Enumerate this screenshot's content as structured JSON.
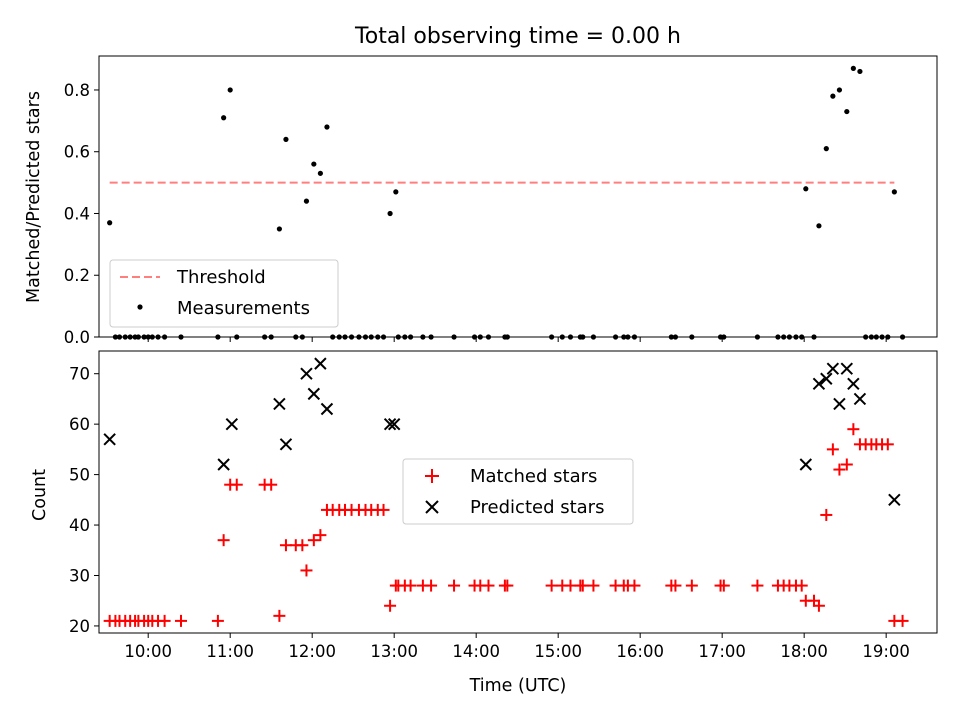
{
  "chart_data": [
    {
      "type": "scatter",
      "title": "Total observing time = 0.00 h",
      "ylabel": "Matched/Predicted stars",
      "xlabel": "",
      "xlim": [
        9.4,
        19.62
      ],
      "ylim": [
        0.0,
        0.91
      ],
      "yticks": [
        0.0,
        0.2,
        0.4,
        0.6,
        0.8
      ],
      "ytick_labels": [
        "0.0",
        "0.2",
        "0.4",
        "0.6",
        "0.8"
      ],
      "xticks": [
        10,
        11,
        12,
        13,
        14,
        15,
        16,
        17,
        18,
        19
      ],
      "grid": false,
      "legend_position": "lower-left",
      "threshold": {
        "name": "Threshold",
        "x_start": 9.53,
        "x_end": 19.1,
        "y": 0.5,
        "color": "#ff7f7f",
        "style": "dashed"
      },
      "series": [
        {
          "name": "Measurements",
          "color": "#000000",
          "marker": "dot",
          "x": [
            9.53,
            9.6,
            9.65,
            9.72,
            9.78,
            9.84,
            9.88,
            9.95,
            10.0,
            10.05,
            10.12,
            10.2,
            10.4,
            10.85,
            10.92,
            11.0,
            11.08,
            11.42,
            11.5,
            11.6,
            11.68,
            11.8,
            11.88,
            11.93,
            12.02,
            12.1,
            12.18,
            12.25,
            12.33,
            12.4,
            12.48,
            12.57,
            12.65,
            12.72,
            12.8,
            12.87,
            12.95,
            13.02,
            13.05,
            13.13,
            13.2,
            13.35,
            13.45,
            13.73,
            13.98,
            14.05,
            14.15,
            14.35,
            14.38,
            14.92,
            15.05,
            15.15,
            15.27,
            15.3,
            15.43,
            15.7,
            15.8,
            15.85,
            15.93,
            16.38,
            16.43,
            16.63,
            16.98,
            17.02,
            17.43,
            17.68,
            17.75,
            17.82,
            17.9,
            17.97,
            18.02,
            18.12,
            18.18,
            18.27,
            18.35,
            18.43,
            18.52,
            18.6,
            18.68,
            18.75,
            18.82,
            18.88,
            18.95,
            19.02,
            19.1,
            19.2
          ],
          "y": [
            0.37,
            0.0,
            0.0,
            0.0,
            0.0,
            0.0,
            0.0,
            0.0,
            0.0,
            0.0,
            0.0,
            0.0,
            0.0,
            0.0,
            0.71,
            0.8,
            0.0,
            0.0,
            0.0,
            0.35,
            0.64,
            0.0,
            0.0,
            0.44,
            0.56,
            0.53,
            0.68,
            0.0,
            0.0,
            0.0,
            0.0,
            0.0,
            0.0,
            0.0,
            0.0,
            0.0,
            0.4,
            0.47,
            0.0,
            0.0,
            0.0,
            0.0,
            0.0,
            0.0,
            0.0,
            0.0,
            0.0,
            0.0,
            0.0,
            0.0,
            0.0,
            0.0,
            0.0,
            0.0,
            0.0,
            0.0,
            0.0,
            0.0,
            0.0,
            0.0,
            0.0,
            0.0,
            0.0,
            0.0,
            0.0,
            0.0,
            0.0,
            0.0,
            0.0,
            0.0,
            0.48,
            0.0,
            0.36,
            0.61,
            0.78,
            0.8,
            0.73,
            0.87,
            0.86,
            0.0,
            0.0,
            0.0,
            0.0,
            0.0,
            0.47,
            0.0
          ]
        }
      ]
    },
    {
      "type": "scatter",
      "title": "",
      "ylabel": "Count",
      "xlabel": "Time (UTC)",
      "xlim": [
        9.4,
        19.62
      ],
      "ylim": [
        18.6,
        74.5
      ],
      "yticks": [
        20,
        30,
        40,
        50,
        60,
        70
      ],
      "ytick_labels": [
        "20",
        "30",
        "40",
        "50",
        "60",
        "70"
      ],
      "xticks": [
        10,
        11,
        12,
        13,
        14,
        15,
        16,
        17,
        18,
        19
      ],
      "xtick_labels": [
        "10:00",
        "11:00",
        "12:00",
        "13:00",
        "14:00",
        "15:00",
        "16:00",
        "17:00",
        "18:00",
        "19:00"
      ],
      "grid": false,
      "legend_position": "center",
      "series": [
        {
          "name": "Matched stars",
          "color": "#ff0000",
          "marker": "plus",
          "x": [
            9.53,
            9.6,
            9.65,
            9.72,
            9.78,
            9.84,
            9.88,
            9.95,
            10.0,
            10.05,
            10.12,
            10.2,
            10.4,
            10.85,
            10.92,
            11.0,
            11.08,
            11.42,
            11.5,
            11.6,
            11.68,
            11.8,
            11.88,
            11.93,
            12.02,
            12.1,
            12.18,
            12.25,
            12.33,
            12.4,
            12.48,
            12.57,
            12.65,
            12.72,
            12.8,
            12.87,
            12.95,
            13.02,
            13.05,
            13.13,
            13.2,
            13.35,
            13.45,
            13.73,
            13.98,
            14.05,
            14.15,
            14.35,
            14.38,
            14.92,
            15.05,
            15.15,
            15.27,
            15.3,
            15.43,
            15.7,
            15.8,
            15.85,
            15.93,
            16.38,
            16.43,
            16.63,
            16.98,
            17.02,
            17.43,
            17.68,
            17.75,
            17.82,
            17.9,
            17.97,
            18.02,
            18.12,
            18.18,
            18.27,
            18.35,
            18.43,
            18.52,
            18.6,
            18.68,
            18.75,
            18.82,
            18.88,
            18.95,
            19.02,
            19.1,
            19.2
          ],
          "y": [
            21,
            21,
            21,
            21,
            21,
            21,
            21,
            21,
            21,
            21,
            21,
            21,
            21,
            21,
            37,
            48,
            48,
            48,
            48,
            22,
            36,
            36,
            36,
            31,
            37,
            38,
            43,
            43,
            43,
            43,
            43,
            43,
            43,
            43,
            43,
            43,
            24,
            28,
            28,
            28,
            28,
            28,
            28,
            28,
            28,
            28,
            28,
            28,
            28,
            28,
            28,
            28,
            28,
            28,
            28,
            28,
            28,
            28,
            28,
            28,
            28,
            28,
            28,
            28,
            28,
            28,
            28,
            28,
            28,
            28,
            25,
            25,
            24,
            42,
            55,
            51,
            52,
            59,
            56,
            56,
            56,
            56,
            56,
            56,
            21,
            21
          ]
        },
        {
          "name": "Predicted stars",
          "color": "#000000",
          "marker": "x",
          "x": [
            9.53,
            10.92,
            11.02,
            11.6,
            11.68,
            11.93,
            12.02,
            12.1,
            12.18,
            12.95,
            13.0,
            18.02,
            18.18,
            18.27,
            18.35,
            18.43,
            18.52,
            18.6,
            18.68,
            19.1
          ],
          "y": [
            57,
            52,
            60,
            64,
            56,
            70,
            66,
            72,
            63,
            60,
            60,
            52,
            68,
            69,
            71,
            64,
            71,
            68,
            65,
            45
          ]
        }
      ]
    }
  ]
}
